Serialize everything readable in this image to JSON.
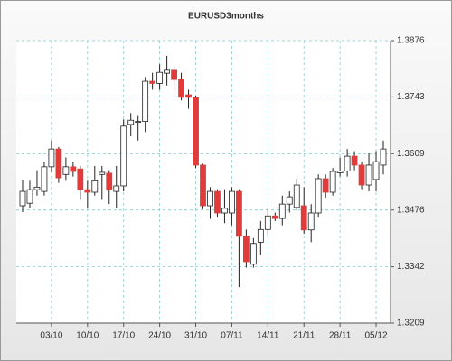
{
  "chart_data": {
    "type": "candlestick",
    "title": "EURUSD3months",
    "categories": [
      null,
      null,
      null,
      null,
      "03/10",
      null,
      null,
      null,
      null,
      "10/10",
      null,
      null,
      null,
      null,
      "17/10",
      null,
      null,
      null,
      null,
      "24/10",
      null,
      null,
      null,
      null,
      "31/10",
      null,
      null,
      null,
      null,
      "07/11",
      null,
      null,
      null,
      null,
      "14/11",
      null,
      null,
      null,
      null,
      "21/11",
      null,
      null,
      null,
      null,
      "28/11",
      null,
      null,
      null,
      null,
      "05/12",
      null
    ],
    "open": [
      1.3486,
      1.3492,
      1.3524,
      1.352,
      1.3578,
      1.362,
      1.356,
      1.3578,
      1.3573,
      1.3524,
      1.3518,
      1.356,
      1.3563,
      1.352,
      1.3533,
      1.3678,
      1.3683,
      1.3685,
      1.378,
      1.3775,
      1.3799,
      1.3806,
      1.3784,
      1.3748,
      1.3742,
      1.3582,
      1.3486,
      1.352,
      1.3469,
      1.3469,
      1.352,
      1.3414,
      1.3348,
      1.34,
      1.343,
      1.3462,
      1.3456,
      1.349,
      1.3482,
      1.3486,
      1.3429,
      1.3469,
      1.355,
      1.3518,
      1.3564,
      1.3568,
      1.3603,
      1.3582,
      1.3535,
      1.3548,
      1.3582
    ],
    "high": [
      1.3546,
      1.3545,
      1.357,
      1.359,
      1.364,
      1.3625,
      1.36,
      1.359,
      1.358,
      1.3545,
      1.358,
      1.358,
      1.357,
      1.358,
      1.369,
      1.3705,
      1.37,
      1.379,
      1.38,
      1.382,
      1.384,
      1.3815,
      1.38,
      1.376,
      1.3746,
      1.3585,
      1.353,
      1.3525,
      1.3525,
      1.353,
      1.3525,
      1.343,
      1.341,
      1.345,
      1.348,
      1.347,
      1.351,
      1.352,
      1.355,
      1.353,
      1.349,
      1.356,
      1.356,
      1.3575,
      1.36,
      1.362,
      1.3615,
      1.359,
      1.361,
      1.3615,
      1.364
    ],
    "low": [
      1.3471,
      1.348,
      1.351,
      1.351,
      1.3565,
      1.354,
      1.3545,
      1.3555,
      1.35,
      1.348,
      1.351,
      1.35,
      1.349,
      1.348,
      1.352,
      1.365,
      1.364,
      1.366,
      1.376,
      1.376,
      1.377,
      1.376,
      1.3735,
      1.3715,
      1.3575,
      1.3478,
      1.3455,
      1.346,
      1.3445,
      1.344,
      1.3294,
      1.334,
      1.334,
      1.337,
      1.3415,
      1.345,
      1.344,
      1.347,
      1.3475,
      1.342,
      1.34,
      1.346,
      1.3505,
      1.351,
      1.3555,
      1.3555,
      1.357,
      1.3525,
      1.352,
      1.352,
      1.356
    ],
    "close": [
      1.352,
      1.3524,
      1.353,
      1.3578,
      1.362,
      1.3552,
      1.3578,
      1.3567,
      1.3524,
      1.3518,
      1.3545,
      1.3565,
      1.3524,
      1.3533,
      1.3674,
      1.3688,
      1.3685,
      1.378,
      1.3775,
      1.3801,
      1.3806,
      1.3784,
      1.3742,
      1.3742,
      1.3582,
      1.3486,
      1.352,
      1.3469,
      1.348,
      1.352,
      1.3414,
      1.3354,
      1.3397,
      1.343,
      1.3462,
      1.3456,
      1.349,
      1.3507,
      1.3535,
      1.3429,
      1.3469,
      1.355,
      1.3518,
      1.3567,
      1.3568,
      1.3603,
      1.3582,
      1.3535,
      1.3582,
      1.359,
      1.362
    ],
    "up_color": "#ffffff",
    "down_color": "#e03c3c",
    "ylim": [
      1.3209,
      1.3876
    ],
    "yticks": [
      1.3209,
      1.3342,
      1.3476,
      1.3609,
      1.3743,
      1.3876
    ],
    "grid": true
  }
}
